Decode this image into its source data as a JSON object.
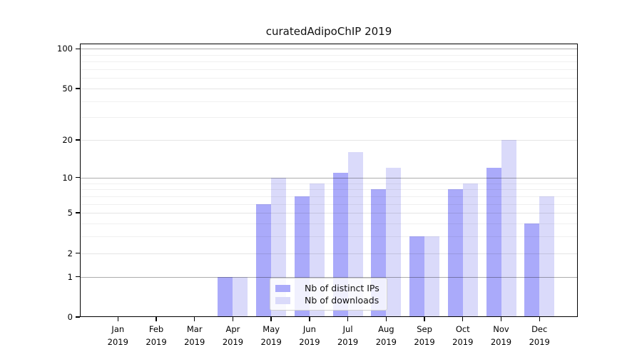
{
  "title": "curatedAdipoChIP 2019",
  "chart_data": {
    "type": "bar",
    "title": "curatedAdipoChIP 2019",
    "categories": [
      "Jan",
      "Feb",
      "Mar",
      "Apr",
      "May",
      "Jun",
      "Jul",
      "Aug",
      "Sep",
      "Oct",
      "Nov",
      "Dec"
    ],
    "year": "2019",
    "series": [
      {
        "name": "Nb of distinct IPs",
        "color": "#aaaafa",
        "values": [
          0,
          0,
          0,
          1,
          6,
          7,
          11,
          8,
          3,
          8,
          12,
          4
        ]
      },
      {
        "name": "Nb of downloads",
        "color": "#dadafa",
        "values": [
          0,
          0,
          0,
          1,
          10,
          9,
          16,
          12,
          3,
          9,
          20,
          7
        ]
      }
    ],
    "yscale": "log1p",
    "yticks": [
      0,
      1,
      2,
      5,
      10,
      20,
      50,
      100
    ],
    "ytick_labels": [
      "0",
      "1",
      "2",
      "5",
      "10",
      "20",
      "50",
      "100"
    ],
    "ylim": [
      0,
      110
    ],
    "xlabel": "",
    "ylabel": "",
    "grid": "horizontal",
    "legend_position": "lower-center",
    "colors": {
      "major_grid": "#b3b3b3",
      "minor_grid": "#ededed",
      "axis": "#000000",
      "background": "#ffffff"
    }
  }
}
